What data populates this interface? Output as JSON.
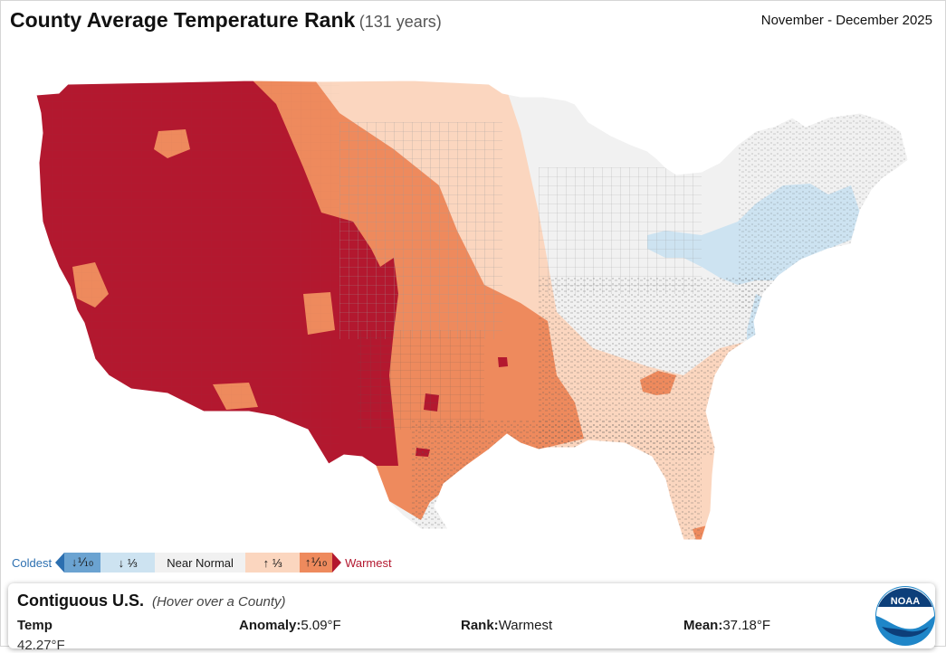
{
  "header": {
    "title": "County Average Temperature Rank",
    "years": "(131 years)",
    "period": "November - December 2025"
  },
  "legend": {
    "coldest_label": "Coldest",
    "warmest_label": "Warmest",
    "items": [
      {
        "label": "↓⅒",
        "color": "#6ba3d1"
      },
      {
        "label": "↓ ⅓",
        "color": "#cde3f1"
      },
      {
        "label": "Near Normal",
        "color": "#f1f1f1"
      },
      {
        "label": "↑ ⅓",
        "color": "#fbd6bf"
      },
      {
        "label": "↑⅒",
        "color": "#ee8a5d"
      }
    ],
    "extreme_colors": {
      "coldest": "#2c6fb0",
      "warmest": "#b3182f"
    }
  },
  "map": {
    "region": "Contiguous U.S.",
    "colors": {
      "record_warmest": "#b3182f",
      "much_above": "#ee8a5d",
      "above": "#fbd6bf",
      "near_normal": "#f1f1f1",
      "below": "#cde3f1"
    }
  },
  "info_panel": {
    "title": "Contiguous U.S.",
    "hint": "(Hover over a County)",
    "temp_label": "Temp",
    "anomaly_label": "Anomaly:",
    "anomaly_value": "5.09°F",
    "rank_label": "Rank:",
    "rank_value": "Warmest",
    "mean_label": "Mean:",
    "mean_value": "37.18°F",
    "partial_value": "42.27°F"
  },
  "logo": {
    "text": "NOAA",
    "icon": "noaa-logo"
  }
}
